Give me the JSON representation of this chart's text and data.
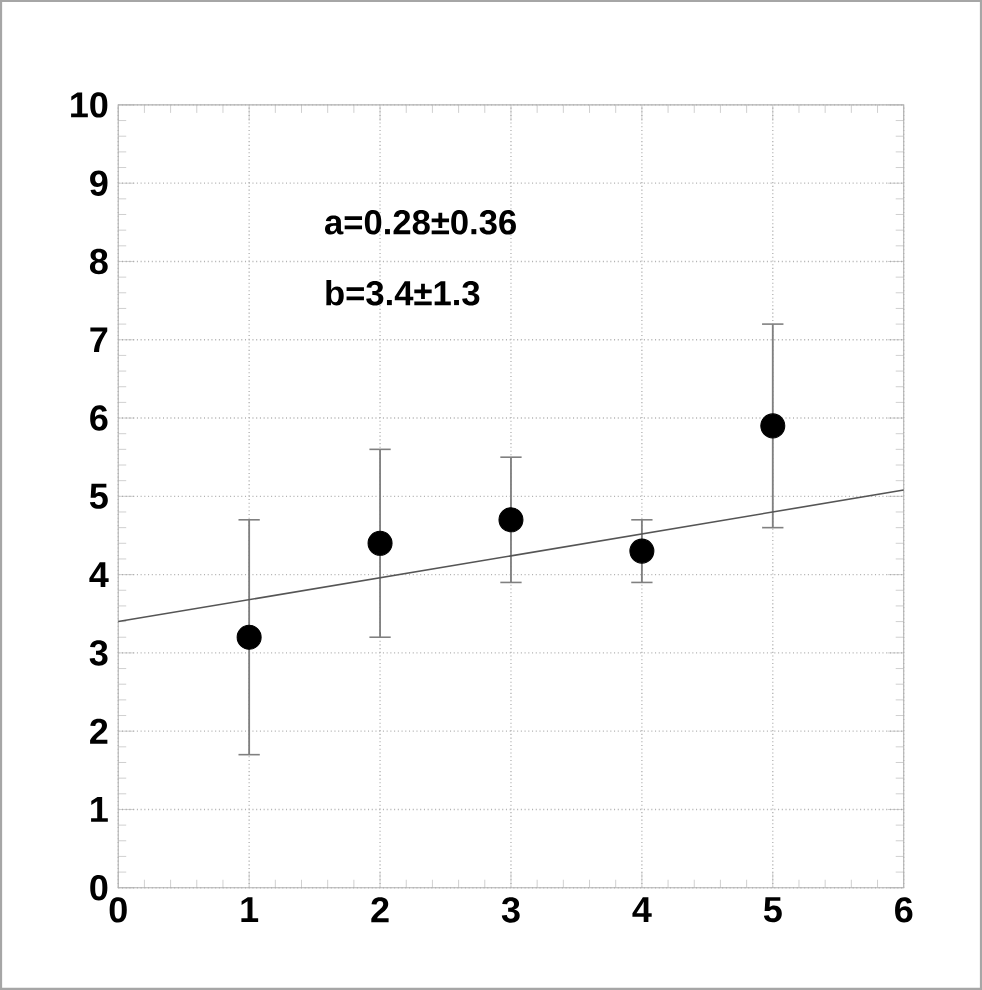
{
  "chart_data": {
    "type": "scatter",
    "x": [
      1,
      2,
      3,
      4,
      5
    ],
    "series": [
      {
        "color": "#000000",
        "marker": "circle",
        "values": [
          3.2,
          4.4,
          4.7,
          4.3,
          5.9
        ],
        "errors": [
          [
            1.7,
            4.7
          ],
          [
            3.2,
            5.6
          ],
          [
            3.9,
            5.5
          ],
          [
            3.9,
            4.7
          ],
          [
            4.6,
            7.2
          ]
        ]
      },
      {
        "type": "line",
        "color": "#555555",
        "x": [
          0,
          6
        ],
        "values": [
          3.4,
          5.08
        ],
        "marker": "none",
        "line_style": "solid"
      }
    ],
    "annotations": [
      "a=0.28±0.36",
      "b=3.4±1.3"
    ],
    "xlim": [
      0,
      6
    ],
    "ylim": [
      0,
      10
    ],
    "xticks": [
      0,
      1,
      2,
      3,
      4,
      5,
      6
    ],
    "yticks": [
      0,
      1,
      2,
      3,
      4,
      5,
      6,
      7,
      8,
      9,
      10
    ],
    "grid": true
  }
}
